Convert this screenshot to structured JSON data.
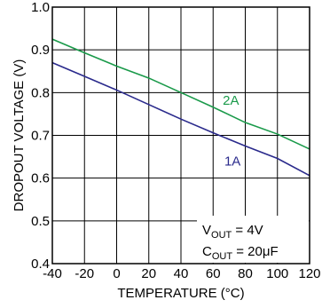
{
  "chart_data": {
    "type": "line",
    "title": "",
    "xlabel": "TEMPERATURE (°C)",
    "ylabel": "DROPOUT VOLTAGE (V)",
    "xlim": [
      -40,
      120
    ],
    "ylim": [
      0.4,
      1.0
    ],
    "x_ticks": [
      -40,
      -20,
      0,
      20,
      40,
      60,
      80,
      100,
      120
    ],
    "y_ticks": [
      0.4,
      0.5,
      0.6,
      0.7,
      0.8,
      0.9,
      1.0
    ],
    "x_tick_labels": [
      "-40",
      "-20",
      "0",
      "20",
      "40",
      "60",
      "80",
      "100",
      "120"
    ],
    "y_tick_labels": [
      "0.4",
      "0.5",
      "0.6",
      "0.7",
      "0.8",
      "0.9",
      "1.0"
    ],
    "grid": true,
    "series": [
      {
        "name": "2A",
        "color": "#1a9a4a",
        "x": [
          -40,
          -20,
          0,
          20,
          40,
          60,
          80,
          100,
          120
        ],
        "y": [
          0.925,
          0.893,
          0.862,
          0.834,
          0.8,
          0.766,
          0.73,
          0.703,
          0.668
        ]
      },
      {
        "name": "1A",
        "color": "#2a2a8c",
        "x": [
          -40,
          -20,
          0,
          20,
          40,
          60,
          80,
          100,
          120
        ],
        "y": [
          0.87,
          0.838,
          0.806,
          0.772,
          0.738,
          0.706,
          0.675,
          0.646,
          0.606
        ]
      }
    ],
    "annotations": {
      "vout_main": "V",
      "vout_sub": "OUT",
      "vout_value": " = 4V",
      "cout_main": "C",
      "cout_sub": "OUT",
      "cout_value": " = 20μF"
    }
  }
}
